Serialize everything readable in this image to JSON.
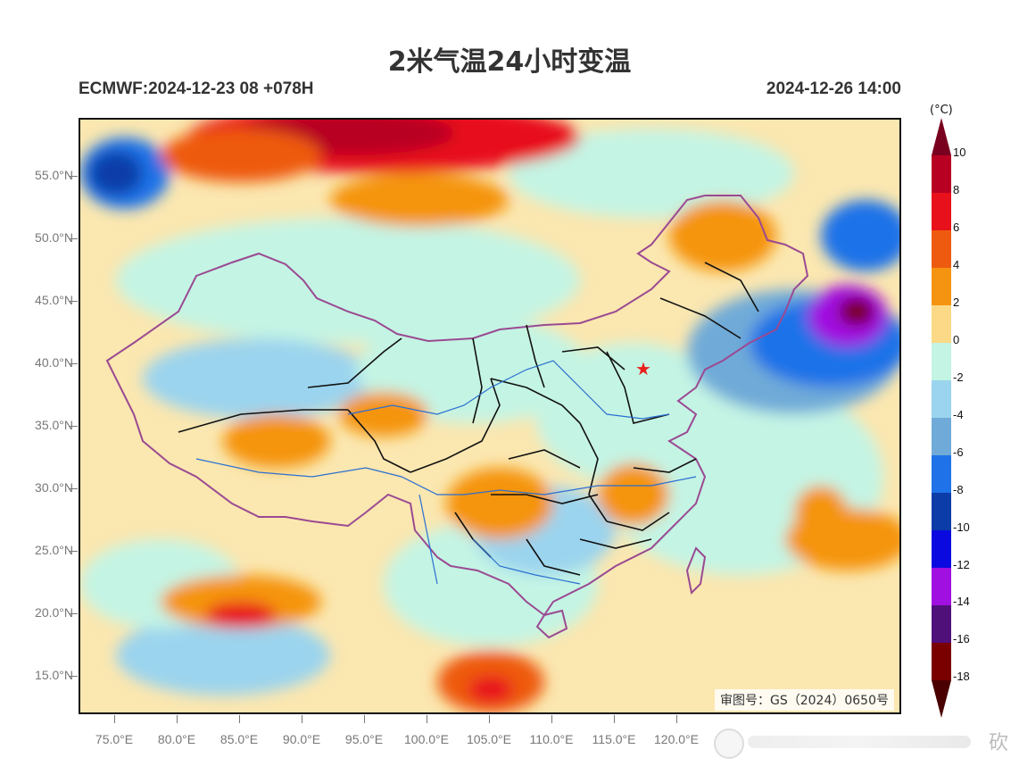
{
  "header": {
    "title": "2米气温24小时变温",
    "model_run": "ECMWF:2024-12-23 08 +078H",
    "valid_time": "2024-12-26 14:00"
  },
  "map": {
    "approval_number": "审图号：GS（2024）0650号",
    "latitude_labels": [
      "55.0°N",
      "50.0°N",
      "45.0°N",
      "40.0°N",
      "35.0°N",
      "30.0°N",
      "25.0°N",
      "20.0°N",
      "15.0°N"
    ],
    "longitude_labels": [
      "75.0°E",
      "80.0°E",
      "85.0°E",
      "90.0°E",
      "95.0°E",
      "100.0°E",
      "105.0°E",
      "110.0°E",
      "115.0°E",
      "120.0°E"
    ],
    "marker": "star-icon",
    "marker_color": "#e8201c"
  },
  "legend": {
    "unit": "(°C)",
    "labels": [
      "10",
      "8",
      "6",
      "4",
      "2",
      "0",
      "-2",
      "-4",
      "-6",
      "-8",
      "-10",
      "-12",
      "-14",
      "-16",
      "-18"
    ],
    "colors": [
      "#7a0020",
      "#b80022",
      "#e8101a",
      "#ee5a10",
      "#f59410",
      "#fbd986",
      "#c4f4e4",
      "#9bd4ee",
      "#70aad8",
      "#1f72e8",
      "#0c3ca8",
      "#0a0ae0",
      "#a010e0",
      "#50107a",
      "#7a0000",
      "#4a0000"
    ]
  },
  "watermark": {
    "text": "砍"
  }
}
